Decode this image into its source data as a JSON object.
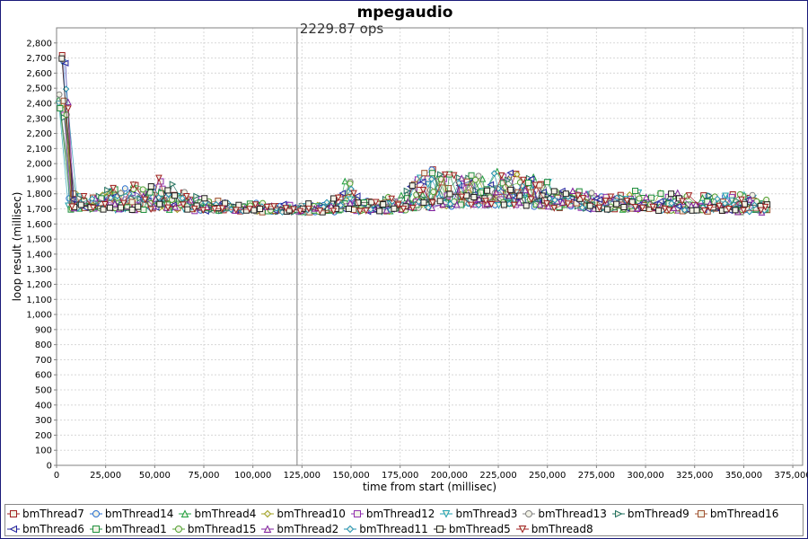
{
  "chart_data": {
    "type": "scatter",
    "title": "mpegaudio",
    "xlabel": "time from start (millisec)",
    "ylabel": "loop result (millisec)",
    "xlim": [
      0,
      380000
    ],
    "ylim": [
      0,
      2900
    ],
    "x_ticks": [
      "0",
      "25,000",
      "50,000",
      "75,000",
      "100,000",
      "125,000",
      "150,000",
      "175,000",
      "200,000",
      "225,000",
      "250,000",
      "275,000",
      "300,000",
      "325,000",
      "350,000",
      "375,000"
    ],
    "y_ticks": [
      "0",
      "100",
      "200",
      "300",
      "400",
      "500",
      "600",
      "700",
      "800",
      "900",
      "1,000",
      "1,100",
      "1,200",
      "1,300",
      "1,400",
      "1,500",
      "1,600",
      "1,700",
      "1,800",
      "1,900",
      "2,000",
      "2,100",
      "2,200",
      "2,300",
      "2,400",
      "2,500",
      "2,600",
      "2,700",
      "2,800"
    ],
    "marker_x": 122500,
    "marker_label": "2229.87 ops",
    "grid": true,
    "legend_position": "bottom",
    "series": [
      {
        "name": "bmThread7",
        "marker": "square",
        "color": "#a02020"
      },
      {
        "name": "bmThread14",
        "marker": "circle",
        "color": "#2a6fd0"
      },
      {
        "name": "bmThread4",
        "marker": "triangle-up",
        "color": "#20a040"
      },
      {
        "name": "bmThread10",
        "marker": "diamond",
        "color": "#a0a020"
      },
      {
        "name": "bmThread12",
        "marker": "square",
        "color": "#9030b0"
      },
      {
        "name": "bmThread3",
        "marker": "triangle-down",
        "color": "#20a0b0"
      },
      {
        "name": "bmThread13",
        "marker": "circle",
        "color": "#808080"
      },
      {
        "name": "bmThread9",
        "marker": "triangle-right",
        "color": "#207060"
      },
      {
        "name": "bmThread16",
        "marker": "square",
        "color": "#a05030"
      },
      {
        "name": "bmThread6",
        "marker": "triangle-left",
        "color": "#2020a0"
      },
      {
        "name": "bmThread1",
        "marker": "square",
        "color": "#209040"
      },
      {
        "name": "bmThread15",
        "marker": "circle",
        "color": "#50a030"
      },
      {
        "name": "bmThread2",
        "marker": "triangle-up",
        "color": "#8020a0"
      },
      {
        "name": "bmThread11",
        "marker": "diamond",
        "color": "#2090b0"
      },
      {
        "name": "bmThread5",
        "marker": "square",
        "color": "#202020"
      },
      {
        "name": "bmThread8",
        "marker": "triangle-down",
        "color": "#a02020"
      }
    ],
    "profile": {
      "x": [
        0,
        2000,
        5000,
        10000,
        25000,
        40000,
        50000,
        60000,
        70000,
        90000,
        120000,
        140000,
        147000,
        155000,
        170000,
        180000,
        187000,
        195000,
        210000,
        230000,
        245000,
        260000,
        280000,
        300000,
        320000,
        340000,
        350000,
        362000
      ],
      "base": [
        2300,
        1720,
        1700,
        1700,
        1700,
        1700,
        1705,
        1700,
        1695,
        1690,
        1685,
        1685,
        1690,
        1685,
        1690,
        1700,
        1710,
        1720,
        1730,
        1730,
        1720,
        1710,
        1700,
        1700,
        1690,
        1690,
        1685,
        1680
      ],
      "spread": [
        700,
        500,
        120,
        100,
        120,
        180,
        200,
        180,
        90,
        50,
        40,
        60,
        250,
        60,
        90,
        150,
        280,
        220,
        200,
        220,
        200,
        130,
        80,
        140,
        110,
        100,
        130,
        80
      ]
    },
    "samples_per_series": 75
  }
}
